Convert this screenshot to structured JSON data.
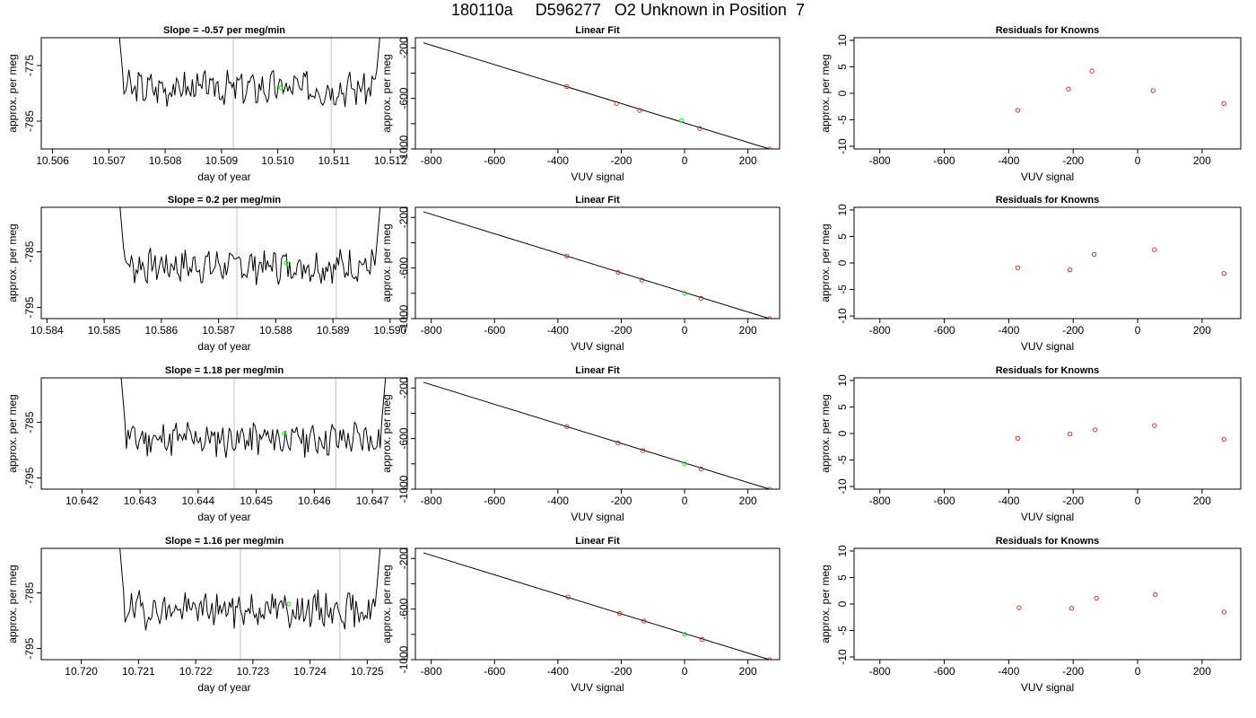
{
  "title": "180110a     D596277   O2 Unknown in Position  7",
  "colors": {
    "trace": "#000000",
    "vline": "#cccccc",
    "unknown": "#00ee00",
    "known": "#cc2222",
    "fitline": "#000000"
  },
  "chart_data": [
    {
      "type": "line",
      "title": "Slope =  -0.57  per meg/min",
      "xlabel": "day of year",
      "ylabel": "approx. per meg",
      "xlim": [
        10.5058,
        10.5123
      ],
      "ylim": [
        -790,
        -770
      ],
      "xticks": [
        10.506,
        10.507,
        10.508,
        10.509,
        10.51,
        10.511,
        10.512
      ],
      "xtick_labels": [
        "10.506",
        "10.507",
        "10.508",
        "10.509",
        "10.510",
        "10.511",
        "10.512"
      ],
      "yticks": [
        -785,
        -775
      ],
      "ytick_labels": [
        "-785",
        "-775"
      ],
      "vlines": [
        10.50921,
        10.51095
      ],
      "trace": {
        "x_start": 10.5071,
        "x_end": 10.5119,
        "n": 170,
        "edge_high": -760,
        "level": -779,
        "noise": 1.6,
        "seed": 3
      },
      "unknown_point": {
        "x": 10.51005,
        "y": -779
      }
    },
    {
      "type": "line",
      "title": "Slope =  0.2  per meg/min",
      "xlabel": "day of year",
      "ylabel": "approx. per meg",
      "xlim": [
        10.5839,
        10.5903
      ],
      "ylim": [
        -797,
        -777
      ],
      "xticks": [
        10.584,
        10.585,
        10.586,
        10.587,
        10.588,
        10.589,
        10.59
      ],
      "xtick_labels": [
        "10.584",
        "10.585",
        "10.586",
        "10.587",
        "10.588",
        "10.589",
        "10.590"
      ],
      "yticks": [
        -795,
        -785
      ],
      "ytick_labels": [
        "-795",
        "-785"
      ],
      "vlines": [
        10.58732,
        10.58906
      ],
      "trace": {
        "x_start": 10.5852,
        "x_end": 10.5899,
        "n": 170,
        "edge_high": -768,
        "level": -787.5,
        "noise": 1.6,
        "seed": 7
      },
      "unknown_point": {
        "x": 10.58818,
        "y": -787
      }
    },
    {
      "type": "line",
      "title": "Slope =  1.18  per meg/min",
      "xlabel": "day of year",
      "ylabel": "approx. per meg",
      "xlim": [
        10.6413,
        10.6476
      ],
      "ylim": [
        -797,
        -777
      ],
      "xticks": [
        10.642,
        10.643,
        10.644,
        10.645,
        10.646,
        10.647
      ],
      "xtick_labels": [
        "10.642",
        "10.643",
        "10.644",
        "10.645",
        "10.646",
        "10.647"
      ],
      "yticks": [
        -795,
        -785
      ],
      "ytick_labels": [
        "-795",
        "-785"
      ],
      "vlines": [
        10.64462,
        10.64637
      ],
      "trace": {
        "x_start": 10.6426,
        "x_end": 10.6473,
        "n": 170,
        "edge_high": -768,
        "level": -788,
        "noise": 1.7,
        "seed": 11
      },
      "unknown_point": {
        "x": 10.64548,
        "y": -787
      }
    },
    {
      "type": "line",
      "title": "Slope =  1.16  per meg/min",
      "xlabel": "day of year",
      "ylabel": "approx. per meg",
      "xlim": [
        10.7193,
        10.7257
      ],
      "ylim": [
        -797,
        -777
      ],
      "xticks": [
        10.72,
        10.721,
        10.722,
        10.723,
        10.724,
        10.725
      ],
      "xtick_labels": [
        "10.720",
        "10.721",
        "10.722",
        "10.723",
        "10.724",
        "10.725"
      ],
      "yticks": [
        -795,
        -785
      ],
      "ytick_labels": [
        "-795",
        "-785"
      ],
      "vlines": [
        10.72278,
        10.72452
      ],
      "trace": {
        "x_start": 10.7206,
        "x_end": 10.7253,
        "n": 170,
        "edge_high": -768,
        "level": -788,
        "noise": 1.7,
        "seed": 19
      },
      "unknown_point": {
        "x": 10.72363,
        "y": -787
      }
    },
    {
      "type": "scatter",
      "title": "Linear Fit",
      "xlabel": "VUV signal",
      "ylabel": "approx. per meg",
      "xlim": [
        -850,
        300
      ],
      "ylim": [
        -1000,
        -120
      ],
      "xticks": [
        -800,
        -600,
        -400,
        -200,
        0,
        200
      ],
      "xtick_labels": [
        "-800",
        "-600",
        "-400",
        "-200",
        "0",
        "200"
      ],
      "yticks": [
        -1000,
        -800,
        -600,
        -400,
        -200
      ],
      "ytick_labels": [
        "-1000",
        "",
        "-600",
        "",
        "-200"
      ],
      "fit_line": {
        "x1": -825,
        "y1": -160,
        "x2": 268,
        "y2": -1000
      },
      "known_points": [
        {
          "x": -372,
          "y": -507
        },
        {
          "x": -215,
          "y": -640
        },
        {
          "x": -142,
          "y": -695
        },
        {
          "x": 48,
          "y": -838
        },
        {
          "x": 268,
          "y": -1000
        }
      ],
      "unknown_point": {
        "x": -10,
        "y": -775
      }
    },
    {
      "type": "scatter",
      "title": "Linear Fit",
      "xlabel": "VUV signal",
      "ylabel": "approx. per meg",
      "xlim": [
        -850,
        300
      ],
      "ylim": [
        -1000,
        -120
      ],
      "xticks": [
        -800,
        -600,
        -400,
        -200,
        0,
        200
      ],
      "xtick_labels": [
        "-800",
        "-600",
        "-400",
        "-200",
        "0",
        "200"
      ],
      "yticks": [
        -1000,
        -800,
        -600,
        -400,
        -200
      ],
      "ytick_labels": [
        "-1000",
        "",
        "-600",
        "",
        "-200"
      ],
      "fit_line": {
        "x1": -825,
        "y1": -155,
        "x2": 268,
        "y2": -1000
      },
      "known_points": [
        {
          "x": -372,
          "y": -505
        },
        {
          "x": -210,
          "y": -635
        },
        {
          "x": -135,
          "y": -695
        },
        {
          "x": 52,
          "y": -840
        },
        {
          "x": 268,
          "y": -1000
        }
      ],
      "unknown_point": {
        "x": 0,
        "y": -800
      }
    },
    {
      "type": "scatter",
      "title": "Linear Fit",
      "xlabel": "VUV signal",
      "ylabel": "approx. per meg",
      "xlim": [
        -850,
        300
      ],
      "ylim": [
        -1000,
        -120
      ],
      "xticks": [
        -800,
        -600,
        -400,
        -200,
        0,
        200
      ],
      "xtick_labels": [
        "-800",
        "-600",
        "-400",
        "-200",
        "0",
        "200"
      ],
      "yticks": [
        -1000,
        -800,
        -600,
        -400,
        -200
      ],
      "ytick_labels": [
        "-1000",
        "",
        "-600",
        "",
        "-200"
      ],
      "fit_line": {
        "x1": -825,
        "y1": -155,
        "x2": 268,
        "y2": -1000
      },
      "known_points": [
        {
          "x": -372,
          "y": -505
        },
        {
          "x": -210,
          "y": -635
        },
        {
          "x": -132,
          "y": -695
        },
        {
          "x": 52,
          "y": -840
        },
        {
          "x": 268,
          "y": -1000
        }
      ],
      "unknown_point": {
        "x": 0,
        "y": -800
      }
    },
    {
      "type": "scatter",
      "title": "Linear Fit",
      "xlabel": "VUV signal",
      "ylabel": "approx. per meg",
      "xlim": [
        -850,
        300
      ],
      "ylim": [
        -1000,
        -120
      ],
      "xticks": [
        -800,
        -600,
        -400,
        -200,
        0,
        200
      ],
      "xtick_labels": [
        "-800",
        "-600",
        "-400",
        "-200",
        "0",
        "200"
      ],
      "yticks": [
        -1000,
        -800,
        -600,
        -400,
        -200
      ],
      "ytick_labels": [
        "-1000",
        "",
        "-600",
        "",
        "-200"
      ],
      "fit_line": {
        "x1": -825,
        "y1": -155,
        "x2": 268,
        "y2": -1000
      },
      "known_points": [
        {
          "x": -368,
          "y": -505
        },
        {
          "x": -205,
          "y": -635
        },
        {
          "x": -128,
          "y": -695
        },
        {
          "x": 55,
          "y": -840
        },
        {
          "x": 268,
          "y": -1000
        }
      ],
      "unknown_point": {
        "x": 0,
        "y": -800
      }
    },
    {
      "type": "scatter",
      "title": "Residuals for Knowns",
      "xlabel": "VUV signal",
      "ylabel": "approx. per meg",
      "xlim": [
        -880,
        320
      ],
      "ylim": [
        -10.5,
        10.5
      ],
      "xticks": [
        -800,
        -600,
        -400,
        -200,
        0,
        200
      ],
      "xtick_labels": [
        "-800",
        "-600",
        "-400",
        "-200",
        "0",
        "200"
      ],
      "yticks": [
        -10,
        -5,
        0,
        5,
        10
      ],
      "ytick_labels": [
        "-10",
        "-5",
        "0",
        "5",
        "10"
      ],
      "known_points": [
        {
          "x": -372,
          "y": -3.2
        },
        {
          "x": -215,
          "y": 0.8
        },
        {
          "x": -142,
          "y": 4.2
        },
        {
          "x": 48,
          "y": 0.5
        },
        {
          "x": 268,
          "y": -1.9
        }
      ]
    },
    {
      "type": "scatter",
      "title": "Residuals for Knowns",
      "xlabel": "VUV signal",
      "ylabel": "approx. per meg",
      "xlim": [
        -880,
        320
      ],
      "ylim": [
        -10.5,
        10.5
      ],
      "xticks": [
        -800,
        -600,
        -400,
        -200,
        0,
        200
      ],
      "xtick_labels": [
        "-800",
        "-600",
        "-400",
        "-200",
        "0",
        "200"
      ],
      "yticks": [
        -10,
        -5,
        0,
        5,
        10
      ],
      "ytick_labels": [
        "-10",
        "-5",
        "0",
        "5",
        "10"
      ],
      "known_points": [
        {
          "x": -372,
          "y": -0.9
        },
        {
          "x": -210,
          "y": -1.3
        },
        {
          "x": -135,
          "y": 1.6
        },
        {
          "x": 52,
          "y": 2.5
        },
        {
          "x": 268,
          "y": -2.0
        }
      ]
    },
    {
      "type": "scatter",
      "title": "Residuals for Knowns",
      "xlabel": "VUV signal",
      "ylabel": "approx. per meg",
      "xlim": [
        -880,
        320
      ],
      "ylim": [
        -10.5,
        10.5
      ],
      "xticks": [
        -800,
        -600,
        -400,
        -200,
        0,
        200
      ],
      "xtick_labels": [
        "-800",
        "-600",
        "-400",
        "-200",
        "0",
        "200"
      ],
      "yticks": [
        -10,
        -5,
        0,
        5,
        10
      ],
      "ytick_labels": [
        "-10",
        "-5",
        "0",
        "5",
        "10"
      ],
      "known_points": [
        {
          "x": -372,
          "y": -0.9
        },
        {
          "x": -210,
          "y": -0.1
        },
        {
          "x": -132,
          "y": 0.7
        },
        {
          "x": 52,
          "y": 1.5
        },
        {
          "x": 268,
          "y": -1.1
        }
      ]
    },
    {
      "type": "scatter",
      "title": "Residuals for Knowns",
      "xlabel": "VUV signal",
      "ylabel": "approx. per meg",
      "xlim": [
        -880,
        320
      ],
      "ylim": [
        -10.5,
        10.5
      ],
      "xticks": [
        -800,
        -600,
        -400,
        -200,
        0,
        200
      ],
      "xtick_labels": [
        "-800",
        "-600",
        "-400",
        "-200",
        "0",
        "200"
      ],
      "yticks": [
        -10,
        -5,
        0,
        5,
        10
      ],
      "ytick_labels": [
        "-10",
        "-5",
        "0",
        "5",
        "10"
      ],
      "known_points": [
        {
          "x": -368,
          "y": -0.7
        },
        {
          "x": -205,
          "y": -0.8
        },
        {
          "x": -128,
          "y": 1.1
        },
        {
          "x": 55,
          "y": 1.8
        },
        {
          "x": 268,
          "y": -1.5
        }
      ]
    }
  ]
}
